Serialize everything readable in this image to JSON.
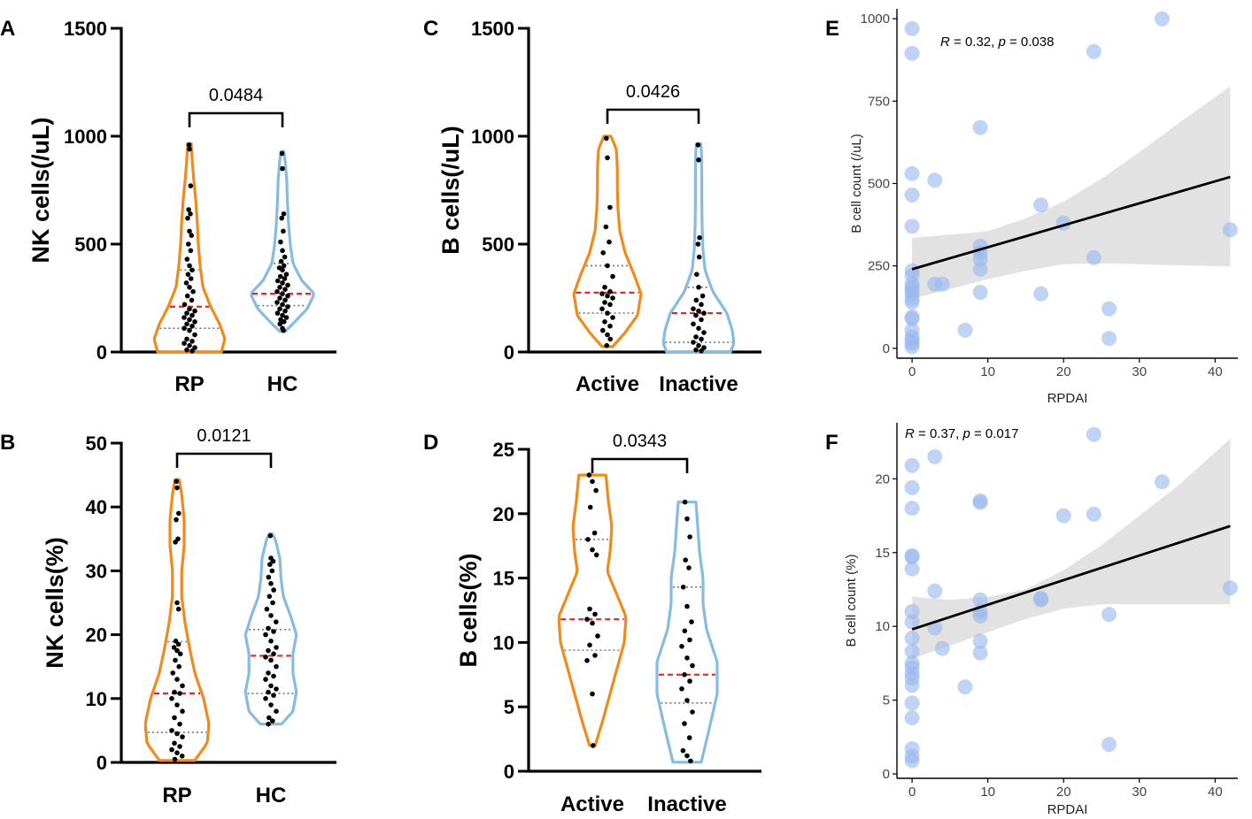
{
  "colors": {
    "orange": "#f08a1c",
    "blue": "#88bbe0",
    "median": "#ee2222",
    "quartile": "#777777",
    "point": "#000000",
    "scatter_point": "#9ab8ee",
    "band": "#e2e2e2",
    "fit": "#000000"
  },
  "chart_data": [
    {
      "panel": "A",
      "type": "violin",
      "ylabel": "NK cells(/uL)",
      "ylim": [
        0,
        1500
      ],
      "yticks": [
        "0",
        "500",
        "1000",
        "1500"
      ],
      "pvalue": "0.0484",
      "groups": [
        {
          "name": "RP",
          "color": "orange",
          "min": 0,
          "max": 965,
          "median": 210,
          "q1": 110,
          "q3": 380,
          "density": [
            [
              0,
              0.9
            ],
            [
              60,
              1.0
            ],
            [
              130,
              0.85
            ],
            [
              210,
              0.6
            ],
            [
              300,
              0.38
            ],
            [
              400,
              0.3
            ],
            [
              500,
              0.25
            ],
            [
              600,
              0.22
            ],
            [
              700,
              0.18
            ],
            [
              800,
              0.12
            ],
            [
              880,
              0.08
            ],
            [
              965,
              0.05
            ]
          ],
          "points": [
            960,
            940,
            770,
            660,
            640,
            620,
            560,
            540,
            500,
            470,
            430,
            400,
            380,
            360,
            340,
            320,
            300,
            280,
            260,
            240,
            220,
            200,
            190,
            180,
            170,
            160,
            150,
            140,
            130,
            120,
            110,
            100,
            80,
            60,
            50,
            40,
            30,
            20,
            10,
            5
          ]
        },
        {
          "name": "HC",
          "color": "blue",
          "min": 95,
          "max": 930,
          "median": 270,
          "q1": 215,
          "q3": 410,
          "density": [
            [
              95,
              0.08
            ],
            [
              140,
              0.35
            ],
            [
              200,
              0.7
            ],
            [
              270,
              0.9
            ],
            [
              330,
              0.55
            ],
            [
              410,
              0.3
            ],
            [
              500,
              0.22
            ],
            [
              600,
              0.17
            ],
            [
              700,
              0.14
            ],
            [
              800,
              0.12
            ],
            [
              880,
              0.08
            ],
            [
              930,
              0.04
            ]
          ],
          "points": [
            920,
            850,
            640,
            620,
            560,
            510,
            470,
            440,
            420,
            400,
            390,
            380,
            360,
            350,
            340,
            330,
            320,
            310,
            300,
            290,
            280,
            270,
            260,
            250,
            240,
            230,
            220,
            210,
            200,
            190,
            180,
            170,
            160,
            150,
            140,
            130,
            110,
            100
          ]
        }
      ]
    },
    {
      "panel": "B",
      "type": "violin",
      "ylabel": "NK cells(%)",
      "ylim": [
        0,
        50
      ],
      "yticks": [
        "0",
        "10",
        "20",
        "30",
        "40",
        "50"
      ],
      "pvalue": "0.0121",
      "groups": [
        {
          "name": "RP",
          "color": "orange",
          "min": 0.3,
          "max": 44.3,
          "median": 10.8,
          "q1": 4.7,
          "q3": 18.9,
          "density": [
            [
              0.3,
              0.5
            ],
            [
              3,
              0.85
            ],
            [
              6,
              0.9
            ],
            [
              10,
              0.75
            ],
            [
              14,
              0.5
            ],
            [
              18,
              0.35
            ],
            [
              22,
              0.22
            ],
            [
              26,
              0.13
            ],
            [
              30,
              0.13
            ],
            [
              34,
              0.2
            ],
            [
              38,
              0.2
            ],
            [
              42,
              0.13
            ],
            [
              44.3,
              0.06
            ]
          ],
          "points": [
            44,
            43,
            39,
            38,
            35,
            34.5,
            25,
            24,
            19,
            18.5,
            18,
            17.5,
            17,
            16,
            15,
            14,
            13,
            12,
            11,
            10.8,
            10,
            9,
            8,
            7,
            6,
            5,
            4.5,
            4,
            3,
            2.5,
            2,
            1.5,
            1,
            0.5
          ]
        },
        {
          "name": "HC",
          "color": "blue",
          "min": 6,
          "max": 35.8,
          "median": 16.7,
          "q1": 10.8,
          "q3": 20.8,
          "density": [
            [
              6,
              0.3
            ],
            [
              8,
              0.62
            ],
            [
              11,
              0.72
            ],
            [
              14,
              0.62
            ],
            [
              17,
              0.62
            ],
            [
              20,
              0.72
            ],
            [
              23,
              0.55
            ],
            [
              26,
              0.35
            ],
            [
              29,
              0.28
            ],
            [
              32,
              0.25
            ],
            [
              35,
              0.12
            ],
            [
              35.8,
              0.04
            ]
          ],
          "points": [
            35.5,
            32,
            31.5,
            31,
            30,
            29,
            28,
            27,
            26,
            25,
            24,
            23,
            22,
            21,
            20.5,
            20,
            19,
            18,
            17.5,
            17,
            16.5,
            16,
            15,
            14,
            13.5,
            13,
            12,
            11.5,
            11,
            10.5,
            10,
            9,
            8,
            7,
            6.5,
            6
          ]
        }
      ]
    },
    {
      "panel": "C",
      "type": "violin",
      "ylabel": "B cells(/uL)",
      "ylim": [
        0,
        1500
      ],
      "yticks": [
        "0",
        "500",
        "1000",
        "1500"
      ],
      "pvalue": "0.0426",
      "groups": [
        {
          "name": "Active",
          "color": "orange",
          "min": 25,
          "max": 1000,
          "median": 275,
          "q1": 180,
          "q3": 400,
          "density": [
            [
              25,
              0.15
            ],
            [
              90,
              0.5
            ],
            [
              170,
              0.85
            ],
            [
              270,
              0.95
            ],
            [
              360,
              0.75
            ],
            [
              460,
              0.5
            ],
            [
              560,
              0.35
            ],
            [
              660,
              0.3
            ],
            [
              760,
              0.28
            ],
            [
              860,
              0.28
            ],
            [
              940,
              0.25
            ],
            [
              1000,
              0.1
            ]
          ],
          "points": [
            990,
            900,
            670,
            580,
            510,
            460,
            400,
            350,
            300,
            280,
            270,
            260,
            250,
            230,
            220,
            200,
            180,
            160,
            140,
            120,
            100,
            80,
            60,
            30
          ]
        },
        {
          "name": "Inactive",
          "color": "blue",
          "min": 0,
          "max": 965,
          "median": 180,
          "q1": 45,
          "q3": 300,
          "density": [
            [
              0,
              0.9
            ],
            [
              40,
              1.0
            ],
            [
              100,
              0.95
            ],
            [
              180,
              0.8
            ],
            [
              280,
              0.4
            ],
            [
              380,
              0.18
            ],
            [
              480,
              0.12
            ],
            [
              580,
              0.1
            ],
            [
              700,
              0.09
            ],
            [
              820,
              0.09
            ],
            [
              920,
              0.08
            ],
            [
              965,
              0.06
            ]
          ],
          "points": [
            960,
            890,
            530,
            500,
            440,
            360,
            300,
            260,
            240,
            220,
            200,
            190,
            180,
            170,
            150,
            130,
            110,
            90,
            70,
            60,
            45,
            30,
            20,
            10,
            5
          ]
        }
      ]
    },
    {
      "panel": "D",
      "type": "violin",
      "ylabel": "B cells(%)",
      "ylim": [
        0,
        25
      ],
      "yticks": [
        "0",
        "5",
        "10",
        "15",
        "20",
        "25"
      ],
      "pvalue": "0.0343",
      "groups": [
        {
          "name": "Active",
          "color": "orange",
          "min": 2,
          "max": 23,
          "median": 11.8,
          "q1": 9.4,
          "q3": 18,
          "density": [
            [
              2,
              0.08
            ],
            [
              4,
              0.3
            ],
            [
              7,
              0.6
            ],
            [
              10,
              0.9
            ],
            [
              12,
              0.95
            ],
            [
              14,
              0.65
            ],
            [
              15.5,
              0.42
            ],
            [
              17,
              0.5
            ],
            [
              19,
              0.55
            ],
            [
              21,
              0.45
            ],
            [
              22.5,
              0.4
            ],
            [
              23,
              0.38
            ]
          ],
          "points": [
            23,
            22.5,
            21.8,
            20.5,
            18.5,
            18,
            17.2,
            16.8,
            12.6,
            12.2,
            11.8,
            11.5,
            10.5,
            9.8,
            9,
            8.6,
            6,
            2
          ]
        },
        {
          "name": "Inactive",
          "color": "blue",
          "min": 0.7,
          "max": 20.9,
          "median": 7.5,
          "q1": 5.3,
          "q3": 14.3,
          "density": [
            [
              0.7,
              0.4
            ],
            [
              3,
              0.6
            ],
            [
              6,
              0.85
            ],
            [
              8.5,
              0.85
            ],
            [
              11,
              0.55
            ],
            [
              13,
              0.45
            ],
            [
              15,
              0.45
            ],
            [
              17,
              0.35
            ],
            [
              19,
              0.3
            ],
            [
              20.9,
              0.25
            ]
          ],
          "points": [
            20.9,
            19.6,
            18.2,
            16.4,
            15.8,
            14.3,
            12.8,
            11.6,
            10.9,
            10.2,
            9.7,
            8.8,
            8.2,
            7.5,
            7,
            6.4,
            5.5,
            4.6,
            3.7,
            2.6,
            1.6,
            1.2,
            0.8
          ]
        }
      ]
    },
    {
      "panel": "E",
      "type": "scatter",
      "xlabel": "RPDAI",
      "ylabel": "B cell count (/uL)",
      "xlim": [
        -2,
        43
      ],
      "ylim": [
        -30,
        1030
      ],
      "xticks": [
        "0",
        "10",
        "20",
        "30",
        "40"
      ],
      "yticks": [
        "0",
        "250",
        "500",
        "750",
        "1000"
      ],
      "annotation": {
        "R": "R",
        "mid": " = 0.32, ",
        "p": "p",
        "end": " = 0.038"
      },
      "fit": {
        "x": [
          0,
          42
        ],
        "y": [
          240,
          520
        ]
      },
      "band": {
        "x": [
          0,
          5,
          10,
          15,
          20,
          25,
          30,
          35,
          42
        ],
        "lo": [
          150,
          180,
          210,
          235,
          255,
          258,
          255,
          252,
          248
        ],
        "hi": [
          335,
          345,
          355,
          395,
          445,
          515,
          595,
          680,
          795
        ]
      },
      "points": [
        [
          0,
          970
        ],
        [
          0,
          895
        ],
        [
          0,
          530
        ],
        [
          0,
          465
        ],
        [
          0,
          370
        ],
        [
          0,
          235
        ],
        [
          0,
          220
        ],
        [
          0,
          195
        ],
        [
          0,
          185
        ],
        [
          0,
          175
        ],
        [
          0,
          165
        ],
        [
          0,
          150
        ],
        [
          0,
          140
        ],
        [
          0,
          95
        ],
        [
          0,
          90
        ],
        [
          0,
          55
        ],
        [
          0,
          35
        ],
        [
          0,
          25
        ],
        [
          0,
          15
        ],
        [
          0,
          5
        ],
        [
          3,
          195
        ],
        [
          3,
          510
        ],
        [
          4,
          195
        ],
        [
          7,
          55
        ],
        [
          9,
          670
        ],
        [
          9,
          310
        ],
        [
          9,
          290
        ],
        [
          9,
          270
        ],
        [
          9,
          240
        ],
        [
          9,
          170
        ],
        [
          17,
          435
        ],
        [
          17,
          165
        ],
        [
          20,
          380
        ],
        [
          24,
          900
        ],
        [
          24,
          275
        ],
        [
          26,
          120
        ],
        [
          26,
          30
        ],
        [
          33,
          1000
        ],
        [
          42,
          360
        ]
      ]
    },
    {
      "panel": "F",
      "type": "scatter",
      "xlabel": "RPDAI",
      "ylabel": "B cell count (%)",
      "xlim": [
        -2,
        43
      ],
      "ylim": [
        -0.3,
        23.8
      ],
      "xticks": [
        "0",
        "10",
        "20",
        "30",
        "40"
      ],
      "yticks": [
        "0",
        "5",
        "10",
        "15",
        "20"
      ],
      "annotation": {
        "R": "R",
        "mid": " = 0.37, ",
        "p": "p",
        "end": " = 0.017"
      },
      "fit": {
        "x": [
          0,
          42
        ],
        "y": [
          9.8,
          16.8
        ]
      },
      "band": {
        "x": [
          0,
          5,
          10,
          15,
          20,
          25,
          30,
          35,
          42
        ],
        "lo": [
          7.8,
          8.7,
          9.6,
          10.5,
          11.2,
          11.5,
          11.5,
          11.5,
          11.5
        ],
        "hi": [
          12.0,
          11.8,
          12.0,
          12.5,
          13.8,
          15.5,
          17.5,
          19.5,
          22.7
        ]
      },
      "points": [
        [
          0,
          20.9
        ],
        [
          0,
          19.4
        ],
        [
          0,
          18
        ],
        [
          0,
          14.8
        ],
        [
          0,
          14.7
        ],
        [
          0,
          13.9
        ],
        [
          0,
          11
        ],
        [
          0,
          10.3
        ],
        [
          0,
          9.2
        ],
        [
          0,
          8.3
        ],
        [
          0,
          7.5
        ],
        [
          0,
          7.2
        ],
        [
          0,
          6.8
        ],
        [
          0,
          6.5
        ],
        [
          0,
          6
        ],
        [
          0,
          4.8
        ],
        [
          0,
          3.8
        ],
        [
          0,
          1.7
        ],
        [
          0,
          1.2
        ],
        [
          0,
          0.9
        ],
        [
          3,
          21.5
        ],
        [
          3,
          12.4
        ],
        [
          3,
          9.9
        ],
        [
          4,
          8.5
        ],
        [
          7,
          5.9
        ],
        [
          9,
          18.5
        ],
        [
          9,
          18.4
        ],
        [
          9,
          11.8
        ],
        [
          9,
          11
        ],
        [
          9,
          10.7
        ],
        [
          9,
          9
        ],
        [
          9,
          8.2
        ],
        [
          17,
          11.9
        ],
        [
          17,
          11.8
        ],
        [
          20,
          17.5
        ],
        [
          24,
          23
        ],
        [
          24,
          17.6
        ],
        [
          26,
          10.8
        ],
        [
          26,
          2
        ],
        [
          33,
          19.8
        ],
        [
          42,
          12.6
        ]
      ]
    }
  ]
}
